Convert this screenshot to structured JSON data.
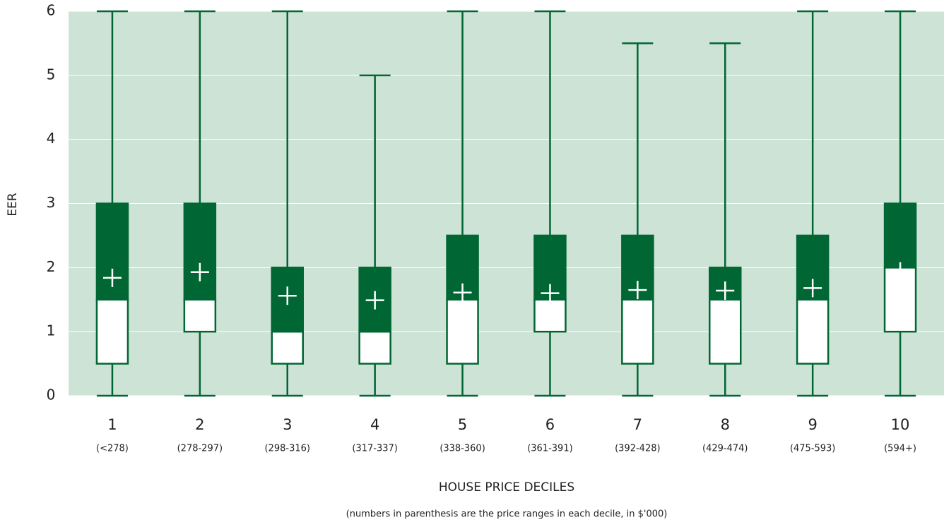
{
  "chart_data": {
    "type": "box",
    "y_label": "EER",
    "x_label": "HOUSE PRICE DECILES",
    "note": "(numbers in parenthesis are the price ranges in each decile, in $'000)",
    "categories": [
      "1",
      "2",
      "3",
      "4",
      "5",
      "6",
      "7",
      "8",
      "9",
      "10"
    ],
    "category_ranges": [
      "(<278)",
      "(278-297)",
      "(298-316)",
      "(317-337)",
      "(338-360)",
      "(361-391)",
      "(392-428)",
      "(429-474)",
      "(475-593)",
      "(594+)"
    ],
    "boxes": [
      {
        "min": 0,
        "q1": 0.5,
        "median": 1.5,
        "q3": 3,
        "max": 6,
        "mean": 1.84
      },
      {
        "min": 0,
        "q1": 1,
        "median": 1.5,
        "q3": 3,
        "max": 6,
        "mean": 1.93
      },
      {
        "min": 0,
        "q1": 0.5,
        "median": 1,
        "q3": 2,
        "max": 6,
        "mean": 1.56
      },
      {
        "min": 0,
        "q1": 0.5,
        "median": 1,
        "q3": 2,
        "max": 5,
        "mean": 1.49
      },
      {
        "min": 0,
        "q1": 0.5,
        "median": 1.5,
        "q3": 2.5,
        "max": 6,
        "mean": 1.61
      },
      {
        "min": 0,
        "q1": 1,
        "median": 1.5,
        "q3": 2.5,
        "max": 6,
        "mean": 1.6
      },
      {
        "min": 0,
        "q1": 0.5,
        "median": 1.5,
        "q3": 2.5,
        "max": 5.5,
        "mean": 1.65
      },
      {
        "min": 0,
        "q1": 0.5,
        "median": 1.5,
        "q3": 2,
        "max": 5.5,
        "mean": 1.64
      },
      {
        "min": 0,
        "q1": 0.5,
        "median": 1.5,
        "q3": 2.5,
        "max": 6,
        "mean": 1.68
      },
      {
        "min": 0,
        "q1": 1,
        "median": 2,
        "q3": 3,
        "max": 6,
        "mean": 1.94
      }
    ],
    "color": "#006633",
    "lower_box_color": "#ffffff",
    "background": "#cde3d6",
    "ylim": [
      0,
      6
    ],
    "yticks": [
      0,
      1,
      2,
      3,
      4,
      5,
      6
    ],
    "grid": true
  }
}
